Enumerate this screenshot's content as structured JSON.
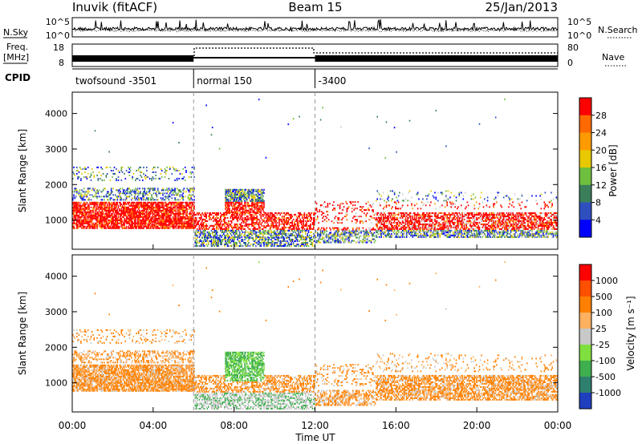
{
  "header": {
    "station": "Inuvik (fitACF)",
    "beam": "Beam 15",
    "date": "25/Jan/2013"
  },
  "nsky_panel": {
    "left_label": "N.Sky",
    "right_label": "N.Search",
    "left_ticks": [
      "10^5",
      "10^0"
    ],
    "right_ticks": [
      "10^5",
      "10^0"
    ]
  },
  "freq_panel": {
    "left_label_1": "Freq.",
    "left_label_2": "[MHz]",
    "right_label": "Nave",
    "left_ticks": [
      "18",
      "8"
    ],
    "right_ticks": [
      "80",
      "0"
    ]
  },
  "cpid": {
    "label": "CPID",
    "segments": [
      {
        "name": "twofsound -3501",
        "start": 0,
        "end": 6
      },
      {
        "name": "normal 150",
        "start": 6,
        "end": 12
      },
      {
        "name": "-3400",
        "start": 12,
        "end": 24
      }
    ]
  },
  "chart_data": [
    {
      "type": "heatmap",
      "parameter": "Power",
      "ylabel": "Slant Range [km]",
      "xlabel": "Time UT",
      "xlim": [
        0,
        24
      ],
      "ylim": [
        180,
        4600
      ],
      "yticks": [
        "4000",
        "3000",
        "2000",
        "1000"
      ],
      "colorbar_label": "Power [dB]",
      "colorbar_ticks": [
        "28",
        "24",
        "20",
        "16",
        "12",
        "8",
        "4"
      ],
      "colorscale": [
        "#0000ff",
        "#2f4fbf",
        "#3a7f5a",
        "#6fbf3f",
        "#e8c800",
        "#ff9b00",
        "#ff6a00",
        "#ff0000"
      ],
      "dashed_time_markers": [
        6,
        12
      ]
    },
    {
      "type": "heatmap",
      "parameter": "Velocity",
      "ylabel": "Slant Range [km]",
      "xlabel": "Time UT",
      "xlim": [
        0,
        24
      ],
      "ylim": [
        180,
        4600
      ],
      "yticks": [
        "4000",
        "3000",
        "2000",
        "1000"
      ],
      "xticks": [
        "00:00",
        "04:00",
        "08:00",
        "12:00",
        "16:00",
        "20:00",
        "00:00"
      ],
      "colorbar_label": "Velocity [m s⁻¹]",
      "colorbar_ticks": [
        "1000",
        "500",
        "100",
        "25",
        "-25",
        "-100",
        "-500",
        "-1000"
      ],
      "colorscale": [
        "#1f3fbf",
        "#2f7f6f",
        "#3faf4f",
        "#7fdf3f",
        "#c8c8c8",
        "#ffb060",
        "#ff8000",
        "#ff5000",
        "#ff0000"
      ],
      "dashed_time_markers": [
        6,
        12
      ]
    }
  ]
}
